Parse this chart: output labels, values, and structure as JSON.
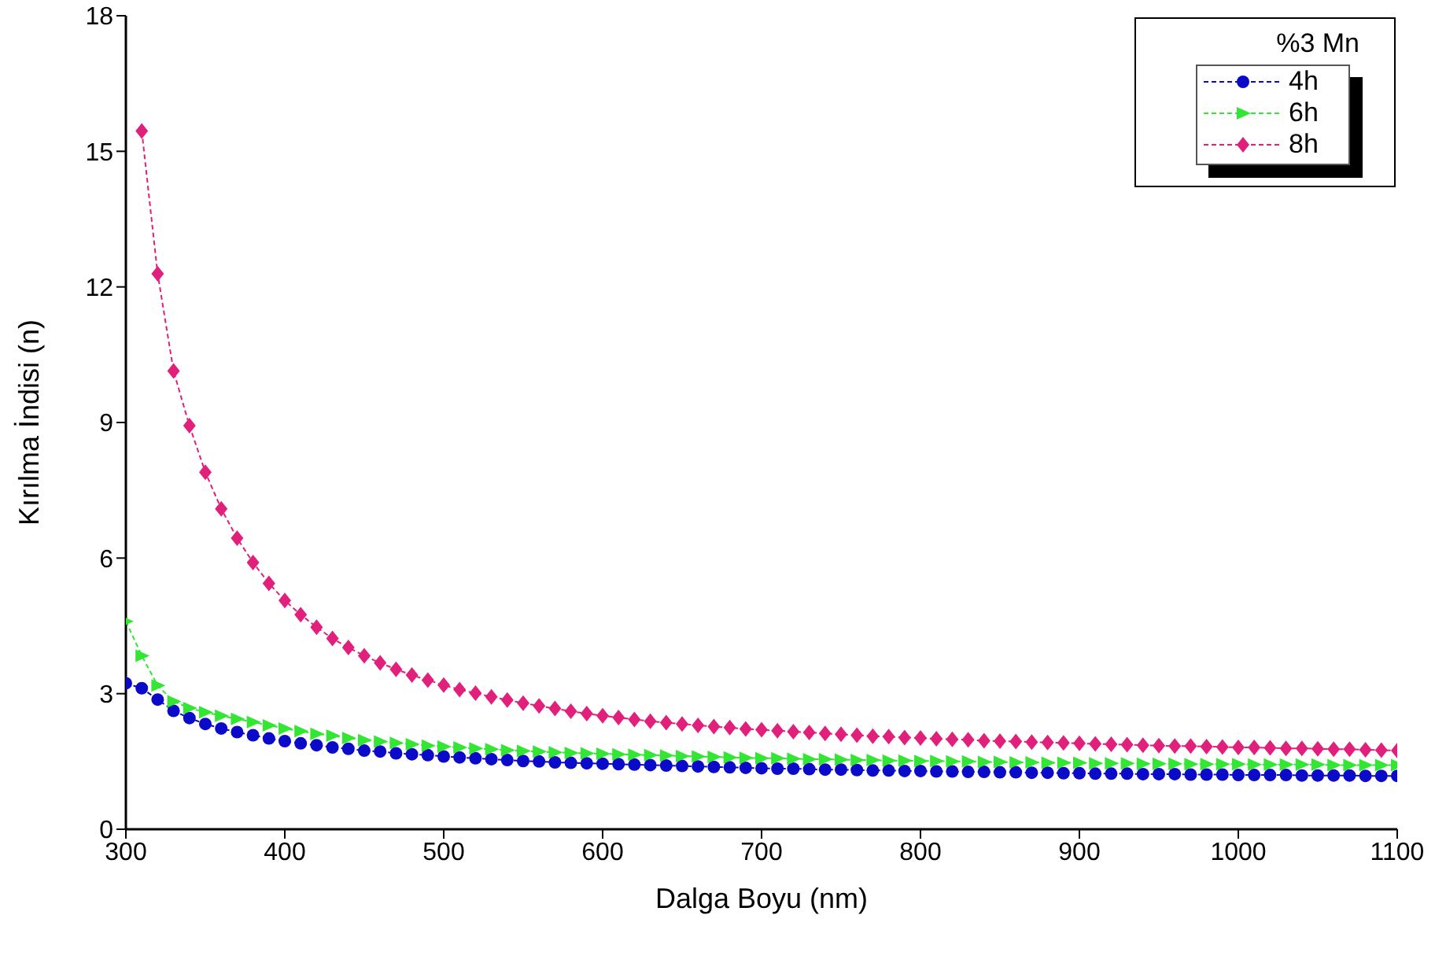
{
  "chart_data": {
    "type": "line",
    "xlabel": "Dalga Boyu (nm)",
    "ylabel": "Kırılma İndisi (n)",
    "legend_title": "%3 Mn",
    "legend": "top right",
    "line_style": "dashed",
    "xlim": [
      300,
      1100
    ],
    "xticks": [
      300,
      400,
      500,
      600,
      700,
      800,
      900,
      1000,
      1100
    ],
    "ylim": [
      0,
      18
    ],
    "yticks": [
      0,
      3,
      6,
      9,
      12,
      15,
      18
    ],
    "x": [
      300,
      310,
      320,
      330,
      340,
      350,
      360,
      370,
      380,
      390,
      400,
      410,
      420,
      430,
      440,
      450,
      460,
      470,
      480,
      490,
      500,
      510,
      520,
      530,
      540,
      550,
      560,
      570,
      580,
      590,
      600,
      610,
      620,
      630,
      640,
      650,
      660,
      670,
      680,
      690,
      700,
      710,
      720,
      730,
      740,
      750,
      760,
      770,
      780,
      790,
      800,
      810,
      820,
      830,
      840,
      850,
      860,
      870,
      880,
      890,
      900,
      910,
      920,
      930,
      940,
      950,
      960,
      970,
      980,
      990,
      1000,
      1010,
      1020,
      1030,
      1040,
      1050,
      1060,
      1070,
      1080,
      1090,
      1100
    ],
    "series": [
      {
        "name": "4h",
        "color": "#0a0ac8",
        "marker": "circle",
        "values": [
          3.23,
          3.12,
          2.87,
          2.62,
          2.46,
          2.33,
          2.23,
          2.15,
          2.08,
          2.01,
          1.95,
          1.9,
          1.86,
          1.81,
          1.78,
          1.74,
          1.72,
          1.68,
          1.66,
          1.64,
          1.61,
          1.59,
          1.57,
          1.55,
          1.53,
          1.51,
          1.5,
          1.48,
          1.47,
          1.46,
          1.45,
          1.44,
          1.43,
          1.42,
          1.41,
          1.4,
          1.39,
          1.38,
          1.37,
          1.36,
          1.35,
          1.34,
          1.34,
          1.33,
          1.32,
          1.32,
          1.31,
          1.3,
          1.3,
          1.29,
          1.29,
          1.28,
          1.28,
          1.27,
          1.27,
          1.26,
          1.26,
          1.25,
          1.25,
          1.24,
          1.24,
          1.23,
          1.23,
          1.23,
          1.22,
          1.22,
          1.22,
          1.21,
          1.21,
          1.21,
          1.2,
          1.2,
          1.2,
          1.2,
          1.19,
          1.19,
          1.19,
          1.19,
          1.18,
          1.18,
          1.18
        ]
      },
      {
        "name": "6h",
        "color": "#33e633",
        "marker": "triangle",
        "values": [
          4.6,
          3.84,
          3.18,
          2.83,
          2.68,
          2.59,
          2.51,
          2.44,
          2.37,
          2.3,
          2.23,
          2.17,
          2.11,
          2.07,
          2.02,
          1.97,
          1.94,
          1.91,
          1.88,
          1.85,
          1.83,
          1.81,
          1.79,
          1.77,
          1.75,
          1.73,
          1.72,
          1.7,
          1.69,
          1.68,
          1.67,
          1.66,
          1.65,
          1.64,
          1.63,
          1.62,
          1.61,
          1.6,
          1.59,
          1.58,
          1.57,
          1.57,
          1.56,
          1.55,
          1.55,
          1.54,
          1.53,
          1.53,
          1.52,
          1.52,
          1.51,
          1.51,
          1.5,
          1.5,
          1.49,
          1.49,
          1.48,
          1.48,
          1.47,
          1.47,
          1.47,
          1.46,
          1.46,
          1.46,
          1.45,
          1.45,
          1.45,
          1.44,
          1.44,
          1.44,
          1.44,
          1.43,
          1.43,
          1.43,
          1.43,
          1.43,
          1.42,
          1.42,
          1.42,
          1.42,
          1.42
        ]
      },
      {
        "name": "8h",
        "color": "#e0207a",
        "marker": "diamond",
        "values": [
          null,
          15.45,
          12.29,
          10.14,
          8.93,
          7.9,
          7.09,
          6.44,
          5.9,
          5.44,
          5.06,
          4.75,
          4.47,
          4.22,
          4.02,
          3.84,
          3.68,
          3.54,
          3.41,
          3.3,
          3.19,
          3.09,
          3.01,
          2.93,
          2.86,
          2.79,
          2.73,
          2.67,
          2.61,
          2.56,
          2.51,
          2.47,
          2.43,
          2.39,
          2.36,
          2.33,
          2.3,
          2.27,
          2.25,
          2.22,
          2.2,
          2.18,
          2.16,
          2.14,
          2.12,
          2.1,
          2.08,
          2.06,
          2.05,
          2.03,
          2.02,
          2.0,
          1.99,
          1.98,
          1.96,
          1.95,
          1.94,
          1.93,
          1.92,
          1.91,
          1.9,
          1.89,
          1.88,
          1.87,
          1.86,
          1.85,
          1.84,
          1.84,
          1.83,
          1.82,
          1.81,
          1.81,
          1.8,
          1.79,
          1.79,
          1.78,
          1.77,
          1.77,
          1.76,
          1.75,
          1.74
        ]
      }
    ]
  }
}
